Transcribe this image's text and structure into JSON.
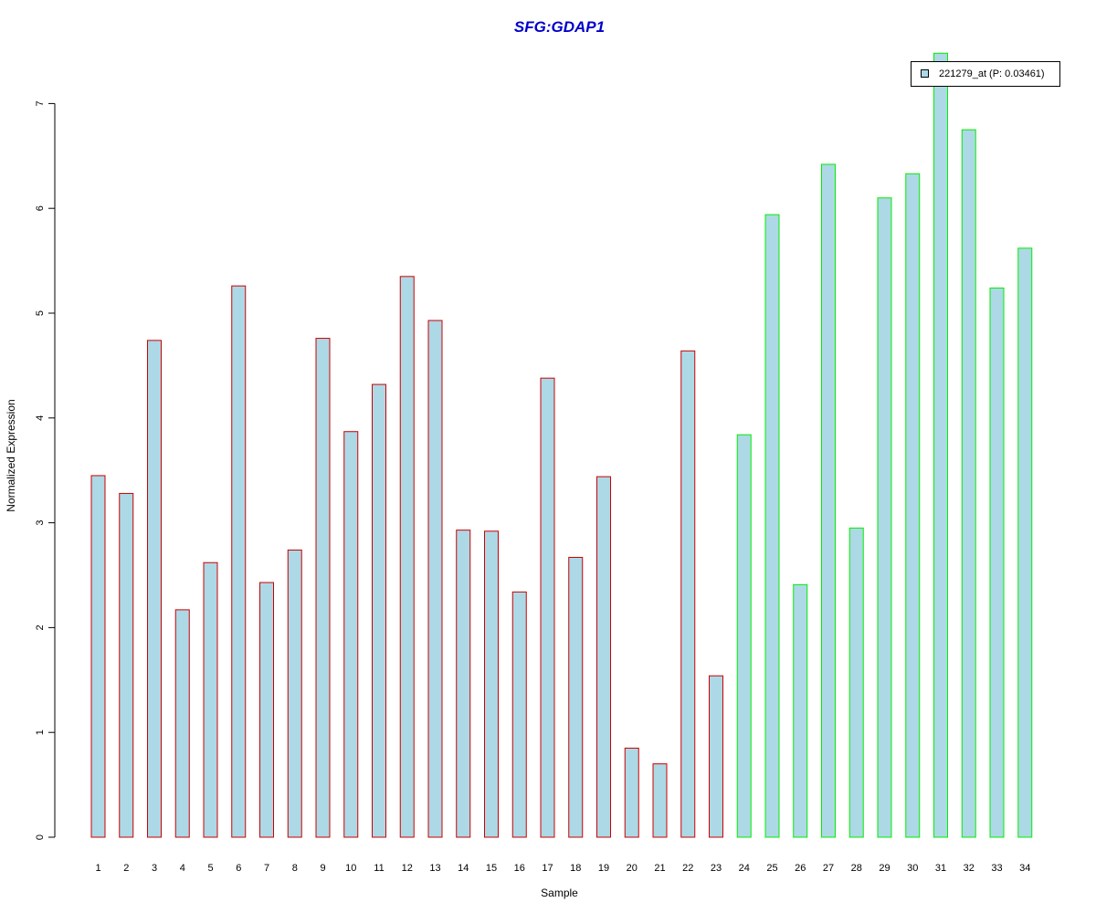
{
  "chart_data": {
    "type": "bar",
    "title": "SFG:GDAP1",
    "xlabel": "Sample",
    "ylabel": "Normalized Expression",
    "ylim": [
      0,
      7
    ],
    "yticks": [
      "0",
      "1",
      "2",
      "3",
      "4",
      "5",
      "6",
      "7"
    ],
    "categories": [
      "1",
      "2",
      "3",
      "4",
      "5",
      "6",
      "7",
      "8",
      "9",
      "10",
      "11",
      "12",
      "13",
      "14",
      "15",
      "16",
      "17",
      "18",
      "19",
      "20",
      "21",
      "22",
      "23",
      "24",
      "25",
      "26",
      "27",
      "28",
      "29",
      "30",
      "31",
      "32",
      "33",
      "34"
    ],
    "values": [
      3.45,
      3.28,
      4.74,
      2.17,
      2.62,
      5.26,
      2.43,
      2.74,
      4.76,
      3.87,
      4.32,
      5.35,
      4.93,
      2.93,
      2.92,
      2.34,
      4.38,
      2.67,
      3.44,
      0.85,
      0.7,
      4.64,
      1.54,
      3.84,
      5.94,
      2.41,
      6.42,
      2.95,
      6.1,
      6.33,
      7.48,
      6.75,
      5.24,
      5.62
    ],
    "group_a_count": 23,
    "fill_color": "#add8e6",
    "border_color_group_a": "#cc0000",
    "border_color_group_b": "#00ee00",
    "grid": false,
    "legend": {
      "position": "top-right",
      "entries": [
        "221279_at (P: 0.03461)"
      ]
    }
  }
}
